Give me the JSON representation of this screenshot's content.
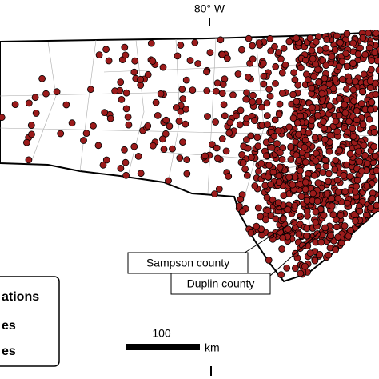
{
  "map": {
    "longitude_label": "80° W",
    "callouts": [
      "Sampson county",
      "Duplin county"
    ],
    "scale": {
      "distance": "100",
      "unit": "km"
    },
    "legend": {
      "title": "ations",
      "items": [
        "es",
        "es"
      ]
    }
  }
}
